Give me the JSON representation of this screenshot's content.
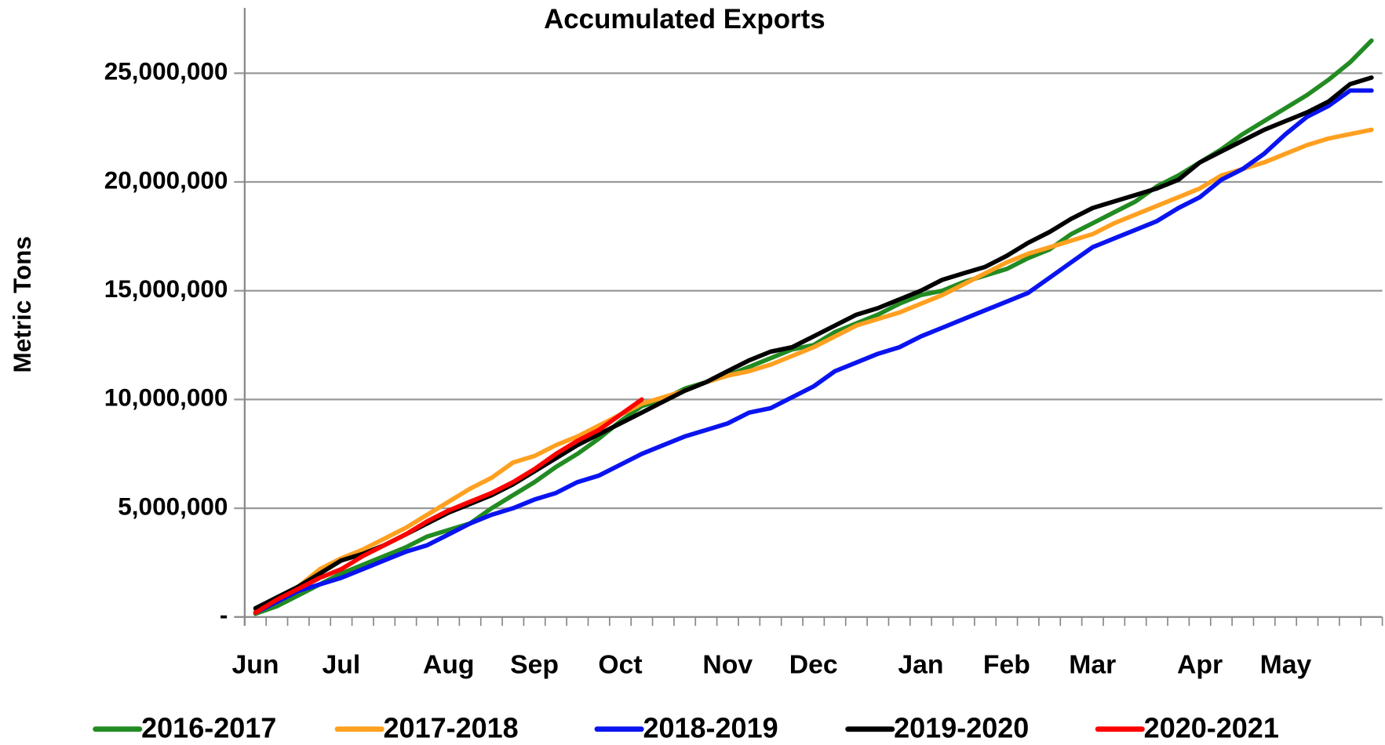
{
  "chart_data": {
    "type": "line",
    "title": "Accumulated Exports",
    "y_label": "Metric Tons",
    "categories": [
      "Jun",
      null,
      null,
      null,
      "Jul",
      null,
      null,
      null,
      null,
      "Aug",
      null,
      null,
      null,
      "Sep",
      null,
      null,
      null,
      "Oct",
      null,
      null,
      null,
      null,
      "Nov",
      null,
      null,
      null,
      "Dec",
      null,
      null,
      null,
      null,
      "Jan",
      null,
      null,
      null,
      "Feb",
      null,
      null,
      null,
      "Mar",
      null,
      null,
      null,
      null,
      "Apr",
      null,
      null,
      null,
      "May",
      null,
      null,
      null,
      null
    ],
    "series": [
      {
        "name": "2016-2017",
        "color": "#228b22",
        "values": [
          150000,
          500000,
          1000000,
          1500000,
          2000000,
          2400000,
          2800000,
          3200000,
          3700000,
          4000000,
          4300000,
          5000000,
          5600000,
          6200000,
          6900000,
          7500000,
          8200000,
          9000000,
          9700000,
          10000000,
          10500000,
          10800000,
          11100000,
          11500000,
          11900000,
          12300000,
          12500000,
          13100000,
          13500000,
          13900000,
          14400000,
          14800000,
          15000000,
          15400000,
          15700000,
          16000000,
          16500000,
          16900000,
          17600000,
          18100000,
          18600000,
          19100000,
          19800000,
          20300000,
          20900000,
          21500000,
          22200000,
          22800000,
          23400000,
          24000000,
          24700000,
          25500000,
          26500000
        ]
      },
      {
        "name": "2017-2018",
        "color": "#ffa020",
        "values": [
          300000,
          800000,
          1400000,
          2200000,
          2700000,
          3100000,
          3600000,
          4100000,
          4700000,
          5300000,
          5900000,
          6400000,
          7100000,
          7400000,
          7900000,
          8300000,
          8800000,
          9300000,
          9800000,
          10100000,
          10400000,
          10800000,
          11100000,
          11300000,
          11600000,
          12000000,
          12400000,
          12900000,
          13400000,
          13700000,
          14000000,
          14400000,
          14800000,
          15300000,
          15800000,
          16300000,
          16700000,
          17000000,
          17300000,
          17600000,
          18100000,
          18500000,
          18900000,
          19300000,
          19700000,
          20300000,
          20600000,
          20900000,
          21300000,
          21700000,
          22000000,
          22200000,
          22400000
        ]
      },
      {
        "name": "2018-2019",
        "color": "#0a14f0",
        "values": [
          200000,
          700000,
          1200000,
          1500000,
          1800000,
          2200000,
          2600000,
          3000000,
          3300000,
          3800000,
          4300000,
          4700000,
          5000000,
          5400000,
          5700000,
          6200000,
          6500000,
          7000000,
          7500000,
          7900000,
          8300000,
          8600000,
          8900000,
          9400000,
          9600000,
          10100000,
          10600000,
          11300000,
          11700000,
          12100000,
          12400000,
          12900000,
          13300000,
          13700000,
          14100000,
          14500000,
          14900000,
          15600000,
          16300000,
          17000000,
          17400000,
          17800000,
          18200000,
          18800000,
          19300000,
          20100000,
          20600000,
          21300000,
          22200000,
          23000000,
          23500000,
          24200000,
          24200000
        ]
      },
      {
        "name": "2019-2020",
        "color": "#000000",
        "values": [
          400000,
          900000,
          1400000,
          2000000,
          2600000,
          2900000,
          3300000,
          3800000,
          4300000,
          4800000,
          5200000,
          5600000,
          6100000,
          6700000,
          7300000,
          7900000,
          8400000,
          8900000,
          9400000,
          9900000,
          10400000,
          10800000,
          11300000,
          11800000,
          12200000,
          12400000,
          12900000,
          13400000,
          13900000,
          14200000,
          14600000,
          15000000,
          15500000,
          15800000,
          16100000,
          16600000,
          17200000,
          17700000,
          18300000,
          18800000,
          19100000,
          19400000,
          19700000,
          20100000,
          20900000,
          21400000,
          21900000,
          22400000,
          22800000,
          23200000,
          23700000,
          24500000,
          24800000
        ]
      },
      {
        "name": "2020-2021",
        "color": "#ff0000",
        "values": [
          200000,
          800000,
          1300000,
          1800000,
          2200000,
          2800000,
          3300000,
          3800000,
          4400000,
          4900000,
          5300000,
          5700000,
          6200000,
          6800000,
          7500000,
          8100000,
          8600000,
          9300000,
          10000000,
          null,
          null,
          null,
          null,
          null,
          null,
          null,
          null,
          null,
          null,
          null,
          null,
          null,
          null,
          null,
          null,
          null,
          null,
          null,
          null,
          null,
          null,
          null,
          null,
          null,
          null,
          null,
          null,
          null,
          null,
          null,
          null,
          null,
          null
        ]
      }
    ],
    "ylim": [
      0,
      28000000
    ],
    "yticks": [
      {
        "value": 0,
        "label": "-"
      },
      {
        "value": 5000000,
        "label": "5,000,000"
      },
      {
        "value": 10000000,
        "label": "10,000,000"
      },
      {
        "value": 15000000,
        "label": "15,000,000"
      },
      {
        "value": 20000000,
        "label": "20,000,000"
      },
      {
        "value": 25000000,
        "label": "25,000,000"
      }
    ],
    "grid": true,
    "legend": "bottom"
  }
}
